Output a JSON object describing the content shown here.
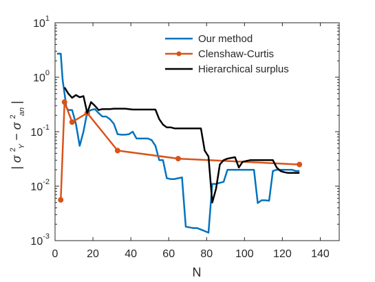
{
  "chart_data": {
    "type": "line",
    "title": "",
    "xlabel": "N",
    "ylabel": "|σ²_Y − σ²_an|",
    "ylabel_parts": {
      "bar_left": "|",
      "sigma1": "σ",
      "sub1": "Y",
      "sup1": "2",
      "minus": " − ",
      "sigma2": "σ",
      "sub2": "an",
      "sup2": "2",
      "bar_right": "|"
    },
    "xlim": [
      0,
      150
    ],
    "ylim": [
      0.001,
      10
    ],
    "yscale": "log",
    "grid": false,
    "legend_position": "top-right",
    "x_ticks": [
      0,
      20,
      40,
      60,
      80,
      100,
      120,
      140
    ],
    "x_tick_labels": [
      "0",
      "20",
      "40",
      "60",
      "80",
      "100",
      "120",
      "140"
    ],
    "y_ticks": [
      0.001,
      0.01,
      0.1,
      1,
      10
    ],
    "y_tick_labels": [
      {
        "base": "10",
        "exp": "-3"
      },
      {
        "base": "10",
        "exp": "-2"
      },
      {
        "base": "10",
        "exp": "-1"
      },
      {
        "base": "10",
        "exp": "0"
      },
      {
        "base": "10",
        "exp": "1"
      }
    ],
    "series": [
      {
        "name": "Our method",
        "color": "#0072BD",
        "marker": "none",
        "x": [
          1,
          3,
          4,
          5,
          6,
          7,
          8,
          9,
          11,
          13,
          15,
          17,
          19,
          21,
          23,
          25,
          27,
          29,
          31,
          33,
          35,
          37,
          39,
          41,
          43,
          45,
          47,
          49,
          51,
          53,
          55,
          57,
          59,
          61,
          63,
          65,
          67,
          69,
          71,
          73,
          75,
          77,
          79,
          81,
          83,
          85,
          87,
          89,
          91,
          93,
          95,
          97,
          99,
          101,
          103,
          105,
          107,
          109,
          111,
          113,
          115,
          117,
          119,
          121,
          123,
          125,
          127,
          129
        ],
        "y": [
          2.7,
          2.7,
          0.9,
          0.5,
          0.28,
          0.25,
          0.25,
          0.25,
          0.14,
          0.055,
          0.1,
          0.23,
          0.25,
          0.26,
          0.22,
          0.19,
          0.19,
          0.17,
          0.14,
          0.09,
          0.088,
          0.088,
          0.09,
          0.1,
          0.075,
          0.075,
          0.075,
          0.075,
          0.07,
          0.055,
          0.03,
          0.03,
          0.014,
          0.0135,
          0.0135,
          0.014,
          0.0145,
          0.0018,
          0.00175,
          0.0017,
          0.0017,
          0.0016,
          0.0015,
          0.0014,
          0.011,
          0.011,
          0.0115,
          0.012,
          0.02,
          0.02,
          0.02,
          0.02,
          0.02,
          0.02,
          0.02,
          0.02,
          0.0049,
          0.0055,
          0.0055,
          0.0054,
          0.019,
          0.02,
          0.02,
          0.02,
          0.02,
          0.02,
          0.019,
          0.019
        ]
      },
      {
        "name": "Clenshaw-Curtis",
        "color": "#D95319",
        "marker": "circle",
        "x": [
          3,
          5,
          9,
          17,
          33,
          65,
          129
        ],
        "y": [
          0.0056,
          0.35,
          0.15,
          0.22,
          0.045,
          0.032,
          0.025
        ]
      },
      {
        "name": "Hierarchical surplus",
        "color": "#000000",
        "marker": "none",
        "x": [
          5,
          7,
          9,
          11,
          13,
          15,
          17,
          19,
          21,
          23,
          25,
          27,
          29,
          31,
          33,
          35,
          37,
          39,
          41,
          43,
          45,
          47,
          49,
          51,
          53,
          55,
          57,
          59,
          61,
          63,
          65,
          67,
          69,
          71,
          73,
          75,
          77,
          79,
          81,
          83,
          85,
          87,
          89,
          91,
          93,
          95,
          97,
          99,
          101,
          103,
          105,
          107,
          109,
          111,
          113,
          115,
          117,
          119,
          121,
          123,
          125,
          127,
          129
        ],
        "y": [
          0.65,
          0.5,
          0.42,
          0.47,
          0.43,
          0.45,
          0.22,
          0.35,
          0.3,
          0.25,
          0.26,
          0.26,
          0.26,
          0.265,
          0.265,
          0.265,
          0.265,
          0.26,
          0.255,
          0.255,
          0.255,
          0.255,
          0.255,
          0.255,
          0.255,
          0.17,
          0.135,
          0.12,
          0.12,
          0.115,
          0.115,
          0.115,
          0.115,
          0.115,
          0.115,
          0.115,
          0.115,
          0.045,
          0.035,
          0.005,
          0.009,
          0.025,
          0.03,
          0.032,
          0.033,
          0.034,
          0.022,
          0.028,
          0.029,
          0.03,
          0.03,
          0.03,
          0.03,
          0.03,
          0.03,
          0.03,
          0.022,
          0.019,
          0.018,
          0.0175,
          0.0175,
          0.0175,
          0.0175
        ]
      }
    ]
  }
}
